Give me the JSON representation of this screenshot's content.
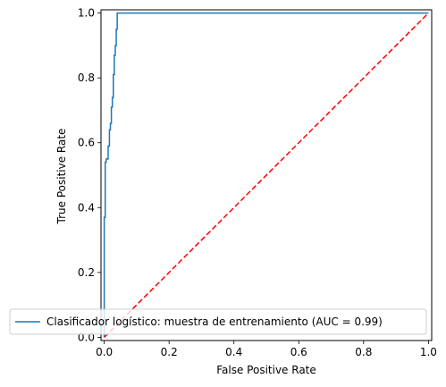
{
  "chart_data": {
    "type": "line",
    "title": "",
    "xlabel": "False Positive Rate",
    "ylabel": "True Positive Rate",
    "xlim": [
      -0.01,
      1.01
    ],
    "ylim": [
      -0.01,
      1.01
    ],
    "xticks": [
      0.0,
      0.2,
      0.4,
      0.6,
      0.8,
      1.0
    ],
    "yticks": [
      0.0,
      0.2,
      0.4,
      0.6,
      0.8,
      1.0
    ],
    "xtick_labels": [
      "0.0",
      "0.2",
      "0.4",
      "0.6",
      "0.8",
      "1.0"
    ],
    "ytick_labels": [
      "0.0",
      "0.2",
      "0.4",
      "0.6",
      "0.8",
      "1.0"
    ],
    "grid": false,
    "legend_position": "lower-right",
    "series": [
      {
        "name": "Clasificador logístico: muestra de entrenamiento (AUC = 0.99)",
        "color": "#1f77b4",
        "style": "solid",
        "x": [
          0.0,
          0.0,
          0.003,
          0.003,
          0.006,
          0.006,
          0.012,
          0.012,
          0.016,
          0.016,
          0.019,
          0.019,
          0.022,
          0.022,
          0.025,
          0.025,
          0.028,
          0.028,
          0.031,
          0.031,
          0.034,
          0.034,
          0.037,
          0.037,
          0.04,
          0.04,
          1.0
        ],
        "y": [
          0.0,
          0.37,
          0.37,
          0.54,
          0.54,
          0.55,
          0.55,
          0.59,
          0.59,
          0.64,
          0.64,
          0.66,
          0.66,
          0.71,
          0.71,
          0.74,
          0.74,
          0.81,
          0.81,
          0.87,
          0.87,
          0.9,
          0.9,
          0.95,
          0.95,
          1.0,
          1.0
        ]
      },
      {
        "name": "",
        "color": "#ff0000",
        "style": "dashed",
        "x": [
          0.0,
          1.0
        ],
        "y": [
          0.0,
          1.0
        ]
      }
    ]
  }
}
